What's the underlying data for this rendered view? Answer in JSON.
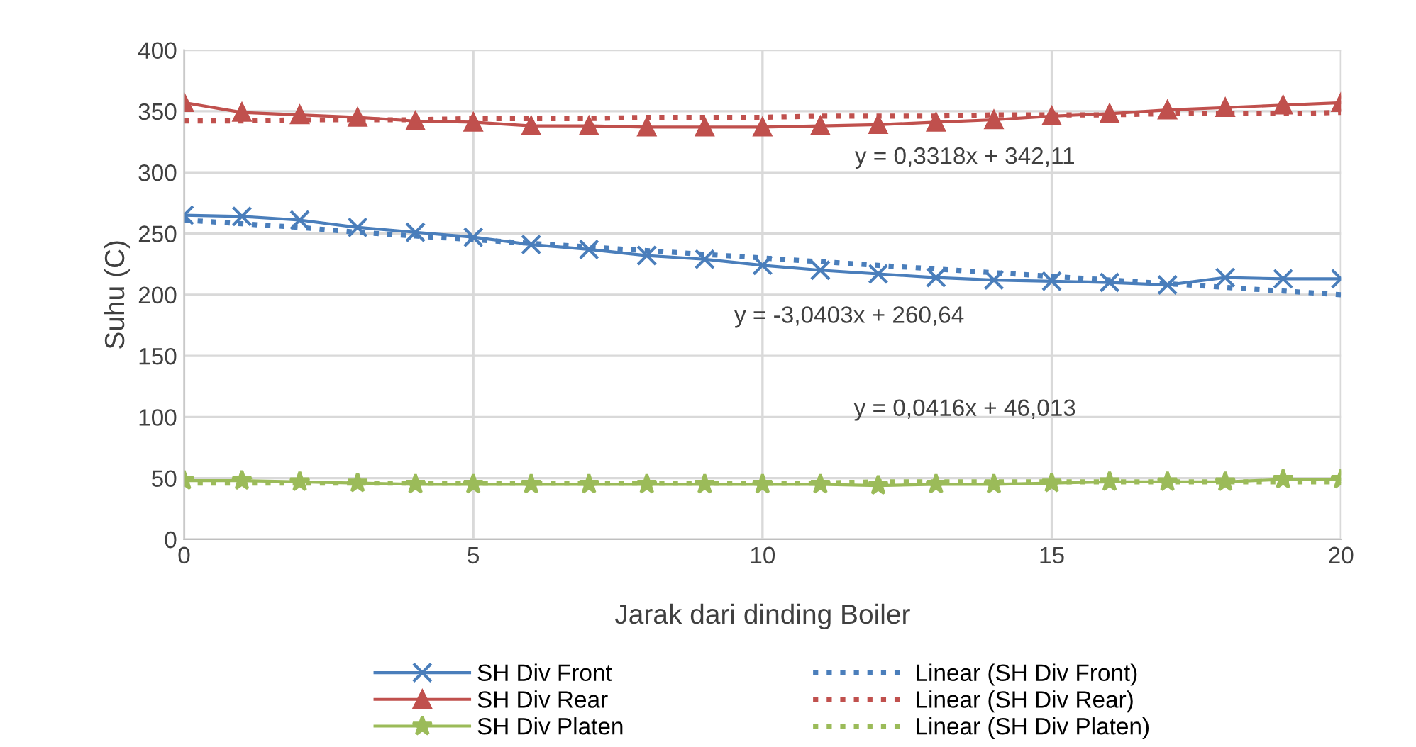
{
  "chart_data": {
    "type": "line",
    "xlabel": "Jarak dari dinding Boiler",
    "ylabel": "Suhu (C)",
    "x": [
      0,
      1,
      2,
      3,
      4,
      5,
      6,
      7,
      8,
      9,
      10,
      11,
      12,
      13,
      14,
      15,
      16,
      17,
      18,
      19,
      20
    ],
    "series": [
      {
        "name": "SH Div Front",
        "color": "#4a7ebb",
        "marker": "cross",
        "line_style": "solid",
        "values": [
          265,
          264,
          261,
          255,
          251,
          247,
          241,
          237,
          232,
          229,
          224,
          220,
          217,
          214,
          212,
          211,
          210,
          208,
          214,
          213,
          213
        ]
      },
      {
        "name": "SH Div Rear",
        "color": "#c0504d",
        "marker": "triangle",
        "line_style": "solid",
        "values": [
          357,
          349,
          347,
          345,
          342,
          341,
          338,
          338,
          337,
          337,
          337,
          338,
          339,
          341,
          343,
          346,
          348,
          351,
          353,
          355,
          357
        ]
      },
      {
        "name": "SH Div Platen",
        "color": "#9bbb59",
        "marker": "star",
        "line_style": "solid",
        "values": [
          48,
          48,
          47,
          46,
          45,
          45,
          45,
          45,
          45,
          45,
          45,
          45,
          44,
          45,
          45,
          46,
          47,
          47,
          47,
          49,
          49
        ]
      },
      {
        "name": "Linear (SH Div Front)",
        "color": "#4a7ebb",
        "marker": "none",
        "line_style": "dotted",
        "values": [
          261,
          258,
          255,
          251,
          248,
          245,
          242,
          239,
          236,
          233,
          230,
          227,
          224,
          221,
          218,
          215,
          212,
          209,
          206,
          203,
          200
        ]
      },
      {
        "name": "Linear (SH Div Rear)",
        "color": "#c0504d",
        "marker": "none",
        "line_style": "dotted",
        "values": [
          342,
          342,
          343,
          343,
          343,
          344,
          344,
          344,
          345,
          345,
          345,
          346,
          346,
          346,
          347,
          347,
          347,
          348,
          348,
          348,
          349
        ]
      },
      {
        "name": "Linear (SH Div Platen)",
        "color": "#9bbb59",
        "marker": "none",
        "line_style": "dotted",
        "values": [
          46,
          46,
          46,
          46,
          46,
          46,
          46,
          46,
          46,
          46,
          46,
          46,
          47,
          47,
          47,
          47,
          47,
          47,
          47,
          47,
          47
        ]
      }
    ],
    "annotations": [
      "y = 0,3318x + 342,11",
      "y = -3,0403x + 260,64",
      "y = 0,0416x + 46,013"
    ],
    "xlim": [
      0,
      20
    ],
    "xticks": [
      0,
      5,
      10,
      15,
      20
    ],
    "ylim": [
      0,
      400
    ],
    "yticks": [
      0,
      50,
      100,
      150,
      200,
      250,
      300,
      350,
      400
    ],
    "grid": true,
    "legend": "bottom"
  }
}
